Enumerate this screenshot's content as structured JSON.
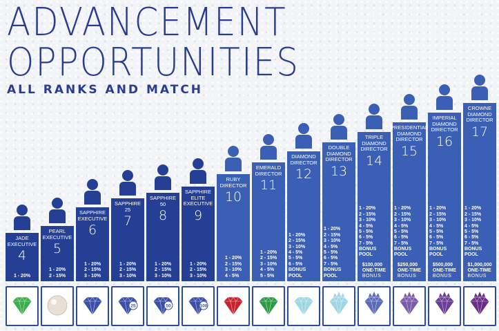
{
  "title_line1": "ADVANCEMENT",
  "title_line2": "OPPORTUNITIES",
  "subtitle": "ALL RANKS AND MATCH",
  "ranks": [
    {
      "name": "JADE\nEXECUTIVE",
      "number": "4",
      "match": [
        "1 - 20%"
      ],
      "gem": "jade-gem-icon",
      "gem_color": "#3cae4a",
      "bar_color": "#243f94",
      "person_color": "#243f94",
      "height": 0
    },
    {
      "name": "PEARL\nEXECUTIVE",
      "number": "5",
      "match": [
        "1 - 20%",
        "2 - 15%"
      ],
      "gem": "pearl-icon",
      "gem_color": "#e8e0d2",
      "bar_color": "#243f94",
      "person_color": "#243f94",
      "height": 0
    },
    {
      "name": "SAPPHIRE\nEXECUTIVE",
      "number": "6",
      "match": [
        "1 - 20%",
        "2 - 15%",
        "3 - 10%"
      ],
      "gem": "sapphire-gem-icon",
      "gem_color": "#3a4fa8",
      "bar_color": "#243f94",
      "person_color": "#243f94",
      "height": 0
    },
    {
      "name": "SAPPHIRE\n25",
      "number": "7",
      "match": [
        "1 - 20%",
        "2 - 15%",
        "3 - 10%"
      ],
      "gem": "sapphire-25-gem-icon",
      "gem_color": "#3a4fa8",
      "gem_badge": "25",
      "bar_color": "#243f94",
      "person_color": "#243f94",
      "height": 0
    },
    {
      "name": "SAPPHIRE\n50",
      "number": "8",
      "match": [
        "1 - 20%",
        "2 - 15%",
        "3 - 10%"
      ],
      "gem": "sapphire-50-gem-icon",
      "gem_color": "#3a4fa8",
      "gem_badge": "50",
      "bar_color": "#243f94",
      "person_color": "#243f94",
      "height": 0
    },
    {
      "name": "SAPPHIRE\nELITE\nEXECUTIVE",
      "number": "9",
      "match": [
        "1 - 20%",
        "2 - 15%",
        "3 - 10%"
      ],
      "gem": "sapphire-100-gem-icon",
      "gem_color": "#3a4fa8",
      "gem_badge": "100",
      "bar_color": "#243f94",
      "person_color": "#243f94",
      "height": 0
    },
    {
      "name": "RUBY\nDIRECTOR",
      "number": "10",
      "match": [
        "1 - 20%",
        "2 - 15%",
        "3 - 10%",
        "4 - 5%"
      ],
      "gem": "ruby-gem-icon",
      "gem_color": "#c8232c",
      "bar_color": "#3b5fb4",
      "person_color": "#3b5fb4",
      "height": 0
    },
    {
      "name": "EMERALD\nDIRECTOR",
      "number": "11",
      "match": [
        "1 - 20%",
        "2 - 15%",
        "3 - 10%",
        "4 - 5%",
        "5 - 5%"
      ],
      "gem": "emerald-gem-icon",
      "gem_color": "#2f9a46",
      "bar_color": "#3b5fb4",
      "person_color": "#3b5fb4",
      "height": 0
    },
    {
      "name": "DIAMOND\nDIRECTOR",
      "number": "12",
      "match": [
        "1 - 20%",
        "2 - 15%",
        "3 - 10%",
        "4 - 5%",
        "5 - 5%",
        "6 - 5%"
      ],
      "bonus_pool": "BONUS POOL",
      "gem": "diamond-gem-icon",
      "gem_color": "#9fd6e4",
      "bar_color": "#3b5fb4",
      "person_color": "#3b5fb4",
      "height": 0
    },
    {
      "name": "DOUBLE\nDIAMOND\nDIRECTOR",
      "number": "13",
      "match": [
        "1 - 20%",
        "2 - 15%",
        "3 - 10%",
        "4 - 5%",
        "5 - 5%",
        "6 - 5%",
        "7 - 5%"
      ],
      "bonus_pool": "BONUS POOL",
      "gem": "double-diamond-gem-icon",
      "gem_color": "#9fd6e4",
      "gem_crown": "#9fd6e4",
      "bar_color": "#3b5fb4",
      "person_color": "#3b5fb4",
      "height": 0
    },
    {
      "name": "TRIPLE\nDIAMOND\nDIRECTOR",
      "number": "14",
      "match": [
        "1 - 20%",
        "2 - 15%",
        "3 - 10%",
        "4 - 5%",
        "5 - 5%",
        "6 - 5%",
        "7 - 5%"
      ],
      "bonus_pool": "BONUS POOL",
      "bonus_amount": "$100,000",
      "bonus_onetime": "ONE-TIME",
      "bonus_word": "BONUS",
      "gem": "triple-diamond-gem-icon",
      "gem_color": "#5b6bb8",
      "gem_crown": "#5b6bb8",
      "bar_color": "#3b5fb4",
      "person_color": "#3b5fb4",
      "height": 0
    },
    {
      "name": "PRESIDENTIAL\nDIAMOND\nDIRECTOR",
      "number": "15",
      "match": [
        "1 - 20%",
        "2 - 15%",
        "3 - 10%",
        "4 - 5%",
        "5 - 5%",
        "6 - 5%",
        "7 - 5%"
      ],
      "bonus_pool": "BONUS POOL",
      "bonus_amount": "$250,000",
      "bonus_onetime": "ONE-TIME",
      "bonus_word": "BONUS",
      "gem": "presidential-diamond-gem-icon",
      "gem_color": "#7b5ba8",
      "gem_crown": "#7b5ba8",
      "bar_color": "#3b5fb4",
      "person_color": "#3b5fb4",
      "height": 0
    },
    {
      "name": "IMPERIAL\nDIAMOND\nDIRECTOR",
      "number": "16",
      "match": [
        "1 - 20%",
        "2 - 15%",
        "3 - 10%",
        "4 - 5%",
        "5 - 5%",
        "6 - 5%",
        "7 - 5%"
      ],
      "bonus_pool": "BONUS POOL",
      "bonus_amount": "$500,000",
      "bonus_onetime": "ONE-TIME",
      "bonus_word": "BONUS",
      "gem": "imperial-diamond-gem-icon",
      "gem_color": "#6a3d96",
      "gem_crown": "#6a3d96",
      "bar_color": "#3b5fb4",
      "person_color": "#3b5fb4",
      "height": 0
    },
    {
      "name": "CROWNE\nDIAMOND\nDIRECTOR",
      "number": "17",
      "match": [
        "1 - 20%",
        "2 - 15%",
        "3 - 10%",
        "4 - 5%",
        "5 - 5%",
        "6 - 5%",
        "7 - 5%"
      ],
      "bonus_pool": "BONUS POOL",
      "bonus_amount": "$1,000,000",
      "bonus_onetime": "ONE-TIME",
      "bonus_word": "BONUS",
      "gem": "crowne-diamond-gem-icon",
      "gem_color": "#6a2d86",
      "gem_crown": "#6a2d86",
      "bar_color": "#3b5fb4",
      "person_color": "#3b5fb4",
      "height": 0
    }
  ]
}
